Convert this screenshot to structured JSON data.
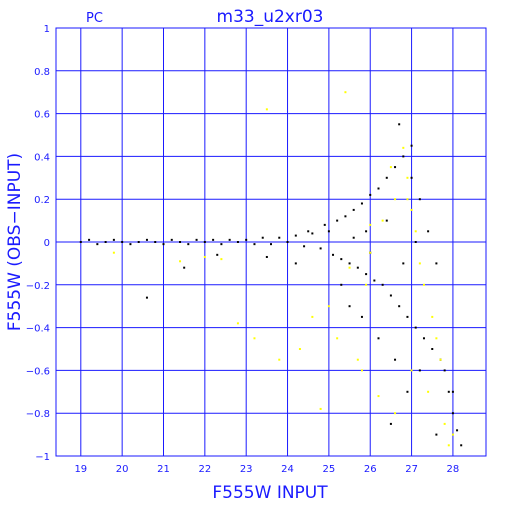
{
  "chart_data": {
    "type": "scatter",
    "corner_label": "PC",
    "title": "m33_u2xr03",
    "xlabel": "F555W INPUT",
    "ylabel": "F555W (OBS−INPUT)",
    "xlim": [
      18.4,
      28.8
    ],
    "ylim": [
      -1,
      1
    ],
    "x_ticks": [
      19,
      20,
      21,
      22,
      23,
      24,
      25,
      26,
      27,
      28
    ],
    "x_tick_labels": [
      "19",
      "20",
      "21",
      "22",
      "23",
      "24",
      "25",
      "26",
      "27",
      "28"
    ],
    "y_ticks": [
      -1,
      -0.8,
      -0.6,
      -0.4,
      -0.2,
      0,
      0.2,
      0.4,
      0.6,
      0.8,
      1
    ],
    "y_tick_labels": [
      "−1",
      "−0.8",
      "−0.6",
      "−0.4",
      "−0.2",
      "0",
      "0.2",
      "0.4",
      "0.6",
      "0.8",
      "1"
    ],
    "grid": true,
    "colors": {
      "axis": "#1a1aff",
      "grid": "#1a1aff",
      "main": "#000000",
      "highlight": "#ffff00"
    },
    "series": [
      {
        "color": "#000000",
        "points": [
          [
            19.0,
            0.0
          ],
          [
            19.2,
            0.01
          ],
          [
            19.4,
            -0.01
          ],
          [
            19.6,
            0.0
          ],
          [
            19.8,
            0.01
          ],
          [
            20.0,
            0.0
          ],
          [
            20.2,
            -0.01
          ],
          [
            20.4,
            0.0
          ],
          [
            20.6,
            0.01
          ],
          [
            20.8,
            0.0
          ],
          [
            21.0,
            -0.01
          ],
          [
            21.2,
            0.01
          ],
          [
            21.4,
            0.0
          ],
          [
            21.6,
            -0.01
          ],
          [
            21.8,
            0.01
          ],
          [
            22.0,
            0.0
          ],
          [
            22.2,
            0.01
          ],
          [
            22.4,
            -0.01
          ],
          [
            22.6,
            0.01
          ],
          [
            22.8,
            0.0
          ],
          [
            23.0,
            0.01
          ],
          [
            23.2,
            -0.01
          ],
          [
            23.4,
            0.02
          ],
          [
            23.6,
            -0.01
          ],
          [
            23.8,
            0.02
          ],
          [
            24.0,
            0.0
          ],
          [
            24.2,
            0.03
          ],
          [
            24.4,
            -0.02
          ],
          [
            24.6,
            0.04
          ],
          [
            24.8,
            -0.03
          ],
          [
            24.5,
            0.05
          ],
          [
            24.9,
            0.08
          ],
          [
            25.0,
            0.05
          ],
          [
            25.1,
            -0.06
          ],
          [
            25.2,
            0.1
          ],
          [
            25.3,
            -0.08
          ],
          [
            25.4,
            0.12
          ],
          [
            25.5,
            -0.1
          ],
          [
            25.6,
            0.15
          ],
          [
            25.7,
            -0.12
          ],
          [
            25.8,
            0.18
          ],
          [
            25.9,
            -0.15
          ],
          [
            26.0,
            0.22
          ],
          [
            26.1,
            -0.18
          ],
          [
            26.2,
            0.25
          ],
          [
            26.3,
            -0.2
          ],
          [
            26.4,
            0.3
          ],
          [
            26.5,
            -0.25
          ],
          [
            26.6,
            0.35
          ],
          [
            26.7,
            -0.3
          ],
          [
            26.8,
            0.4
          ],
          [
            26.9,
            -0.35
          ],
          [
            27.0,
            0.3
          ],
          [
            27.1,
            -0.4
          ],
          [
            27.2,
            0.2
          ],
          [
            27.3,
            -0.45
          ],
          [
            27.4,
            0.05
          ],
          [
            27.5,
            -0.5
          ],
          [
            27.6,
            -0.1
          ],
          [
            27.7,
            -0.55
          ],
          [
            27.8,
            -0.6
          ],
          [
            27.9,
            -0.7
          ],
          [
            28.0,
            -0.8
          ],
          [
            28.1,
            -0.88
          ],
          [
            28.2,
            -0.95
          ],
          [
            27.2,
            -0.6
          ],
          [
            26.9,
            -0.7
          ],
          [
            26.6,
            -0.55
          ],
          [
            26.2,
            -0.45
          ],
          [
            25.8,
            -0.35
          ],
          [
            25.5,
            -0.3
          ],
          [
            25.9,
            0.05
          ],
          [
            26.4,
            0.1
          ],
          [
            26.8,
            -0.1
          ],
          [
            27.1,
            0.0
          ],
          [
            26.0,
            -0.05
          ],
          [
            25.6,
            0.02
          ],
          [
            26.7,
            0.55
          ],
          [
            27.0,
            0.45
          ],
          [
            25.3,
            -0.2
          ],
          [
            24.2,
            -0.1
          ],
          [
            23.5,
            -0.07
          ],
          [
            22.3,
            -0.06
          ],
          [
            21.5,
            -0.12
          ],
          [
            20.6,
            -0.26
          ],
          [
            26.5,
            -0.85
          ],
          [
            27.6,
            -0.9
          ],
          [
            28.0,
            -0.7
          ]
        ]
      },
      {
        "color": "#ffff00",
        "points": [
          [
            23.5,
            0.62
          ],
          [
            25.4,
            0.7
          ],
          [
            26.8,
            0.44
          ],
          [
            26.9,
            0.3
          ],
          [
            27.0,
            0.15
          ],
          [
            26.6,
            0.2
          ],
          [
            27.1,
            0.05
          ],
          [
            27.2,
            -0.1
          ],
          [
            27.3,
            -0.2
          ],
          [
            27.5,
            -0.35
          ],
          [
            27.6,
            -0.45
          ],
          [
            27.7,
            -0.55
          ],
          [
            26.3,
            0.1
          ],
          [
            26.0,
            -0.05
          ],
          [
            25.9,
            -0.2
          ],
          [
            25.5,
            -0.12
          ],
          [
            25.0,
            -0.3
          ],
          [
            24.6,
            -0.35
          ],
          [
            24.3,
            -0.5
          ],
          [
            23.8,
            -0.55
          ],
          [
            23.2,
            -0.45
          ],
          [
            22.8,
            -0.38
          ],
          [
            22.4,
            -0.08
          ],
          [
            22.0,
            -0.07
          ],
          [
            21.4,
            -0.09
          ],
          [
            19.8,
            -0.05
          ],
          [
            26.2,
            -0.72
          ],
          [
            26.6,
            -0.8
          ],
          [
            27.0,
            -0.6
          ],
          [
            27.4,
            -0.7
          ],
          [
            27.8,
            -0.85
          ],
          [
            28.0,
            -0.9
          ],
          [
            25.7,
            -0.55
          ],
          [
            25.2,
            -0.45
          ],
          [
            24.8,
            -0.78
          ],
          [
            26.9,
            0.2
          ],
          [
            26.5,
            0.35
          ],
          [
            26.0,
            0.08
          ],
          [
            25.8,
            -0.6
          ],
          [
            27.9,
            -0.95
          ]
        ]
      }
    ]
  }
}
